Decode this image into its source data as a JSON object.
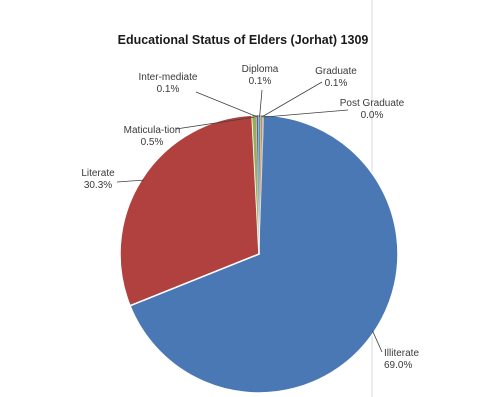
{
  "chart_data": {
    "type": "pie",
    "title": "Educational Status of Elders (Jorhat) 1309",
    "slices": [
      {
        "label": "Illiterate",
        "value": 69.0,
        "value_label": "69.0%",
        "color": "#4a78b4"
      },
      {
        "label": "Literate",
        "value": 30.3,
        "value_label": "30.3%",
        "color": "#b0413e"
      },
      {
        "label": "Maticula-tion",
        "value": 0.5,
        "value_label": "0.5%",
        "color": "#96ae55"
      },
      {
        "label": "Inter-mediate",
        "value": 0.1,
        "value_label": "0.1%",
        "color": "#6f5a94"
      },
      {
        "label": "Diploma",
        "value": 0.1,
        "value_label": "0.1%",
        "color": "#3aa0bf"
      },
      {
        "label": "Graduate",
        "value": 0.1,
        "value_label": "0.1%",
        "color": "#e38a35"
      },
      {
        "label": "Post Graduate",
        "value": 0.0,
        "value_label": "0.0%",
        "color": "#8caed9"
      }
    ],
    "start_angle_deg": 0,
    "direction": "clockwise"
  }
}
